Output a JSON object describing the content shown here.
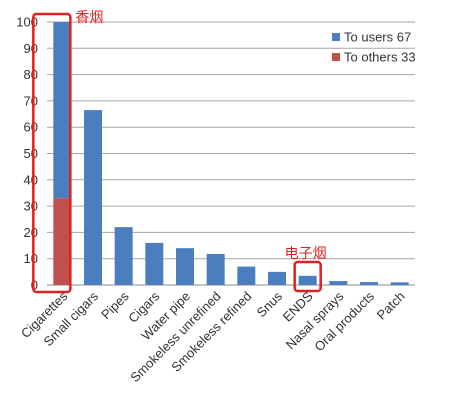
{
  "chart_data": {
    "type": "bar",
    "stacked": true,
    "categories": [
      "Cigarettes",
      "Small cigars",
      "Pipes",
      "Cigars",
      "Water pipe",
      "Smokeless unrefined",
      "Smokeless refined",
      "Snus",
      "ENDS",
      "Nasal sprays",
      "Oral products",
      "Patch"
    ],
    "series": [
      {
        "name": "To others 33",
        "color": "#c0504d",
        "values": [
          33,
          0,
          0,
          0,
          0,
          0,
          0,
          0,
          0,
          0,
          0,
          0
        ]
      },
      {
        "name": "To users 67",
        "color": "#4a7ebf",
        "values": [
          67,
          66.5,
          22,
          16,
          14,
          11.8,
          7,
          5,
          3.5,
          1.5,
          1.1,
          1
        ]
      }
    ],
    "ylim": [
      0,
      100
    ],
    "yticks": [
      "0",
      "10",
      "20",
      "30",
      "40",
      "50",
      "60",
      "70",
      "80",
      "90",
      "100"
    ],
    "grid": true,
    "legend": "top-right",
    "annotations": [
      {
        "label": "香烟",
        "target": "Cigarettes",
        "color": "#e02020"
      },
      {
        "label": "电子烟",
        "target": "ENDS",
        "color": "#e02020"
      }
    ]
  }
}
